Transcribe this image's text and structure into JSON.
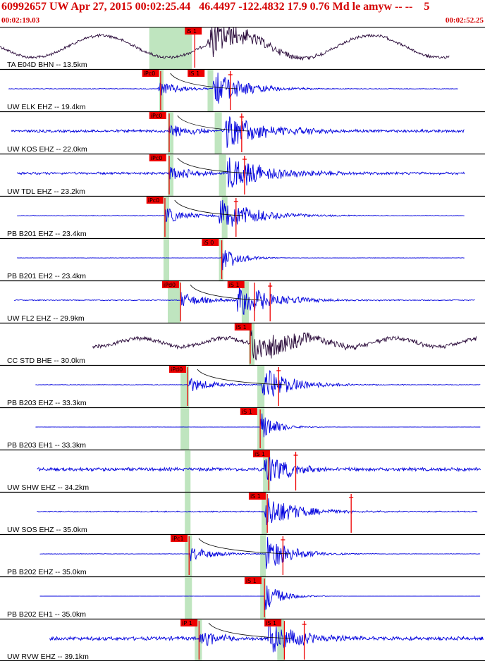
{
  "header": {
    "title": "60992657 UW Apr 27, 2015 00:02:25.44   46.4497 -122.4832 17.9 0.76 Md le amyw -- --    5",
    "time_start": "00:02:19.03",
    "time_end": "00:02:52.25"
  },
  "colors": {
    "header_text": "#d40000",
    "trace_main": "#0000dd",
    "trace_other": "#2a0a3a",
    "pick_box": "#ee0000",
    "pick_text": "#000000",
    "bar_green": "#bfe5bf",
    "separator": "#000000"
  },
  "chart_data": {
    "type": "line",
    "title": "60992657 UW Apr 27, 2015 00:02:25.44   46.4497 -122.4832 17.9 0.76 Md le amyw -- --    5",
    "x_range": [
      "00:02:19.03",
      "00:02:52.25"
    ],
    "x_start_seconds": 0,
    "x_end_seconds": 33.22,
    "grid": false,
    "traces": [
      {
        "label": "TA E04D BHN -- 13.5km",
        "kind": "long",
        "color": "#2a0a3a",
        "start": 0.0,
        "end": 31.6,
        "noise": 0.25,
        "arrival": 14.6,
        "coda": 8,
        "peak": 1.0,
        "wave_amp": 0.8,
        "period": 9.5,
        "picks": [
          {
            "label": "iS 1",
            "t": 13.0
          }
        ],
        "green": [
          10.5,
          13.5
        ],
        "red_lines": [
          13.7
        ]
      },
      {
        "label": "UW ELK EHZ -- 19.4km",
        "kind": "ev",
        "color": "#0000dd",
        "start": 0.6,
        "end": 32.2,
        "noise": 0.05,
        "arrival": 11.1,
        "p": 11.1,
        "coda": 6,
        "peak": 1.0,
        "picks": [
          {
            "label": "iPc0",
            "t": 10.0
          },
          {
            "label": "iS 1",
            "t": 13.2
          }
        ],
        "green": [
          11.2,
          11.5,
          14.6,
          15.0
        ],
        "red_lines": [
          11.3,
          16.2
        ],
        "mark": 16.2
      },
      {
        "label": "UW KOS EHZ -- 22.0km",
        "kind": "ev",
        "color": "#0000dd",
        "start": 0.8,
        "end": 32.7,
        "noise": 0.22,
        "arrival": 11.9,
        "p": 11.9,
        "coda": 8,
        "peak": 1.0,
        "picks": [
          {
            "label": "iPc0",
            "t": 10.5
          }
        ],
        "green": [
          11.8,
          12.2,
          15.1,
          15.6
        ],
        "red_lines": [
          11.9,
          17.0
        ],
        "mark": 17.0
      },
      {
        "label": "UW TDL EHZ -- 23.2km",
        "kind": "ev",
        "color": "#0000dd",
        "start": 1.2,
        "end": 32.7,
        "noise": 0.2,
        "arrival": 11.9,
        "p": 11.9,
        "coda": 8,
        "peak": 1.0,
        "picks": [
          {
            "label": "iPc0",
            "t": 10.5
          }
        ],
        "green": [
          11.8,
          12.2,
          15.4,
          15.9
        ],
        "red_lines": [
          11.9,
          17.2
        ],
        "mark": 17.2
      },
      {
        "label": "PB B201 EHZ -- 23.4km",
        "kind": "ev",
        "color": "#0000dd",
        "start": 1.2,
        "end": 32.7,
        "noise": 0.05,
        "arrival": 11.6,
        "p": 11.6,
        "coda": 7,
        "peak": 1.0,
        "picks": [
          {
            "label": "iPc0",
            "t": 10.3
          }
        ],
        "green": [
          11.5,
          11.9,
          15.6,
          16.0
        ],
        "red_lines": [
          11.6,
          16.6
        ],
        "mark": 16.6
      },
      {
        "label": "PB B201 EH2 -- 23.4km",
        "kind": "s",
        "color": "#0000dd",
        "start": 1.2,
        "end": 32.7,
        "noise": 0.03,
        "arrival": 15.6,
        "coda": 3,
        "peak": 0.9,
        "picks": [
          {
            "label": "iS 0",
            "t": 14.2
          }
        ],
        "green": [
          11.5,
          11.9,
          15.4,
          15.7
        ],
        "red_lines": [
          15.6
        ]
      },
      {
        "label": "UW FL2 EHZ -- 29.9km",
        "kind": "ev",
        "color": "#0000dd",
        "start": 1.0,
        "end": 33.4,
        "noise": 0.08,
        "arrival": 12.7,
        "p": 12.7,
        "coda": 7,
        "peak": 1.0,
        "picks": [
          {
            "label": "iPd0",
            "t": 11.4
          },
          {
            "label": "iS 1",
            "t": 16.0
          }
        ],
        "green": [
          11.8,
          12.7,
          17.0,
          17.5
        ],
        "red_lines": [
          12.7,
          17.9,
          19.0
        ],
        "mark": 19.0
      },
      {
        "label": "CC STD BHE -- 30.0km",
        "kind": "long",
        "color": "#2a0a3a",
        "start": 6.5,
        "end": 33.5,
        "noise": 0.35,
        "arrival": 17.6,
        "coda": 9,
        "peak": 1.0,
        "wave_amp": 0.3,
        "period": 6.0,
        "picks": [
          {
            "label": "iS 1",
            "t": 16.5
          }
        ],
        "green": [
          17.5,
          17.9
        ],
        "red_lines": [
          17.6
        ]
      },
      {
        "label": "PB B203 EHZ -- 33.3km",
        "kind": "ev",
        "color": "#0000dd",
        "start": 2.5,
        "end": 33.8,
        "noise": 0.05,
        "arrival": 13.2,
        "p": 13.2,
        "coda": 6,
        "peak": 1.0,
        "picks": [
          {
            "label": "iPd0",
            "t": 11.9
          }
        ],
        "green": [
          12.7,
          13.3,
          18.1,
          18.6
        ],
        "red_lines": [
          13.2,
          19.6
        ],
        "mark": 19.6
      },
      {
        "label": "PB B203 EH1 -- 33.3km",
        "kind": "s",
        "color": "#0000dd",
        "start": 2.5,
        "end": 33.8,
        "noise": 0.02,
        "arrival": 18.3,
        "coda": 3,
        "peak": 0.9,
        "picks": [
          {
            "label": "iS 1",
            "t": 16.9
          }
        ],
        "green": [
          12.7,
          13.3,
          18.1,
          18.6
        ],
        "red_lines": [
          18.3
        ]
      },
      {
        "label": "UW SHW EHZ -- 34.2km",
        "kind": "s",
        "color": "#0000dd",
        "start": 2.6,
        "end": 33.8,
        "noise": 0.28,
        "arrival": 18.6,
        "coda": 5,
        "peak": 1.0,
        "picks": [
          {
            "label": "iS 1",
            "t": 17.8
          }
        ],
        "green": [
          13.0,
          13.4,
          18.5,
          19.0
        ],
        "red_lines": [
          18.9,
          20.8
        ],
        "mark": 20.8
      },
      {
        "label": "UW SOS EHZ -- 35.0km",
        "kind": "s",
        "color": "#0000dd",
        "start": 2.6,
        "end": 33.6,
        "noise": 0.1,
        "arrival": 18.6,
        "coda": 6,
        "peak": 1.0,
        "picks": [
          {
            "label": "iS 1",
            "t": 17.5
          }
        ],
        "green": [
          13.0,
          13.4,
          18.4,
          18.8
        ],
        "red_lines": [
          18.8,
          24.7
        ],
        "mark": 24.7
      },
      {
        "label": "PB B202 EHZ -- 35.0km",
        "kind": "ev",
        "color": "#0000dd",
        "start": 2.8,
        "end": 33.8,
        "noise": 0.04,
        "arrival": 13.3,
        "p": 13.3,
        "coda": 5,
        "peak": 1.0,
        "picks": [
          {
            "label": "iPc1",
            "t": 12.0
          }
        ],
        "green": [
          13.0,
          13.5,
          18.3,
          18.7
        ],
        "red_lines": [
          13.3,
          19.9
        ],
        "mark": 19.9
      },
      {
        "label": "PB B202 EH1 -- 35.0km",
        "kind": "s",
        "color": "#0000dd",
        "start": 2.8,
        "end": 33.8,
        "noise": 0.01,
        "arrival": 18.6,
        "coda": 3,
        "peak": 0.9,
        "picks": [
          {
            "label": "iS 1",
            "t": 17.2
          }
        ],
        "green": [
          13.0,
          13.5,
          18.3,
          18.7
        ],
        "red_lines": [
          18.6
        ]
      },
      {
        "label": "UW RVW EHZ -- 39.1km",
        "kind": "ev",
        "color": "#0000dd",
        "start": 3.5,
        "end": 34.5,
        "noise": 0.3,
        "arrival": 14.0,
        "p": 14.0,
        "coda": 6,
        "peak": 1.0,
        "picks": [
          {
            "label": "iP 1",
            "t": 12.7
          },
          {
            "label": "iS 1",
            "t": 18.6
          }
        ],
        "green": [
          13.7,
          14.2,
          19.5,
          20.0
        ],
        "red_lines": [
          14.0,
          20.0,
          21.4
        ],
        "mark": 21.4
      }
    ]
  }
}
